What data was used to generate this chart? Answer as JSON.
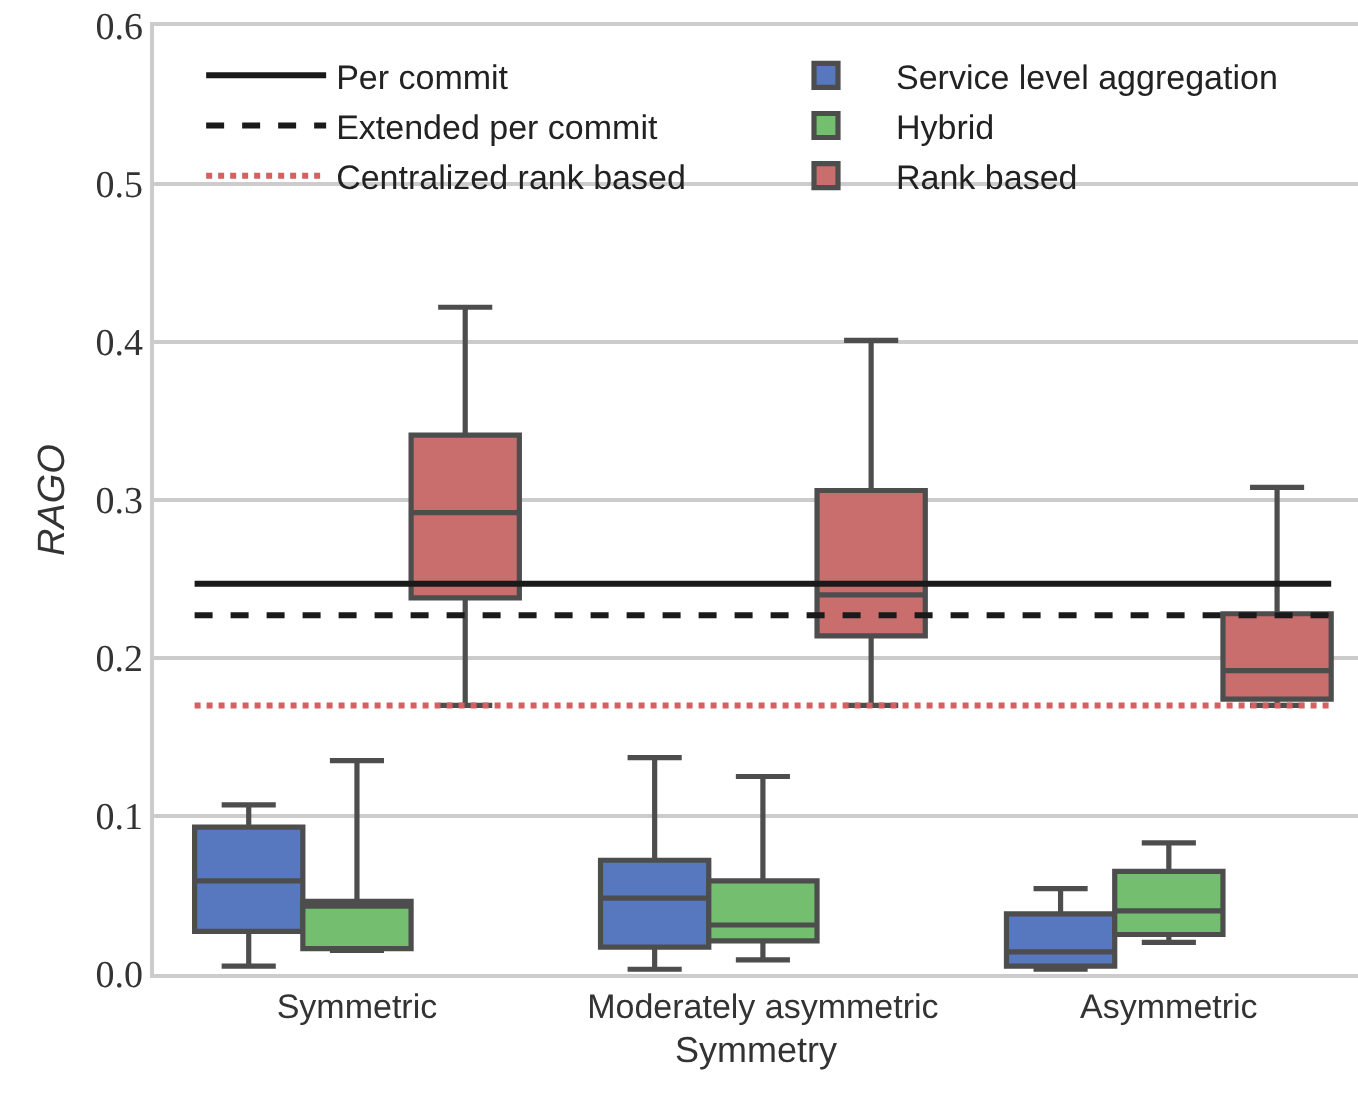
{
  "chart_data": {
    "type": "box",
    "categories": [
      "Symmetric",
      "Moderately asymmetric",
      "Asymmetric"
    ],
    "xlabel": "Symmetry",
    "ylabel": "RAGO",
    "ylim": [
      0,
      0.6
    ],
    "yticks": [
      {
        "value": 0,
        "label": "0.0"
      },
      0.1,
      0.2,
      0.3,
      0.4,
      0.5,
      0.6
    ],
    "grid": "y",
    "legend": "top",
    "series": [
      {
        "name": "Service level aggregation",
        "color": "#5778bf",
        "boxes": [
          {
            "low": 0.005,
            "q1": 0.027,
            "median": 0.059,
            "q3": 0.093,
            "high": 0.107
          },
          {
            "low": 0.003,
            "q1": 0.017,
            "median": 0.048,
            "q3": 0.072,
            "high": 0.137
          },
          {
            "low": 0.003,
            "q1": 0.005,
            "median": 0.014,
            "q3": 0.038,
            "high": 0.054
          }
        ]
      },
      {
        "name": "Hybrid",
        "color": "#73bf6f",
        "boxes": [
          {
            "low": 0.015,
            "q1": 0.016,
            "median": 0.043,
            "q3": 0.046,
            "high": 0.135
          },
          {
            "low": 0.009,
            "q1": 0.021,
            "median": 0.031,
            "q3": 0.059,
            "high": 0.125
          },
          {
            "low": 0.02,
            "q1": 0.025,
            "median": 0.04,
            "q3": 0.065,
            "high": 0.083
          }
        ]
      },
      {
        "name": "Rank based",
        "color": "#c96d6d",
        "boxes": [
          {
            "low": 0.17,
            "q1": 0.238,
            "median": 0.292,
            "q3": 0.341,
            "high": 0.422
          },
          {
            "low": 0.17,
            "q1": 0.214,
            "median": 0.24,
            "q3": 0.306,
            "high": 0.401
          },
          {
            "low": 0.17,
            "q1": 0.174,
            "median": 0.192,
            "q3": 0.228,
            "high": 0.308
          }
        ]
      }
    ],
    "ref_lines": [
      {
        "axis": "y",
        "value": 0.247,
        "label": "Per commit",
        "color": "#1a1a1a",
        "line_style": "solid"
      },
      {
        "axis": "y",
        "value": 0.227,
        "label": "Extended per commit",
        "color": "#1a1a1a",
        "line_style": "dashed"
      },
      {
        "axis": "y",
        "value": 0.17,
        "label": "Centralized rank based",
        "color": "#d65f5f",
        "line_style": "dotted"
      }
    ]
  }
}
